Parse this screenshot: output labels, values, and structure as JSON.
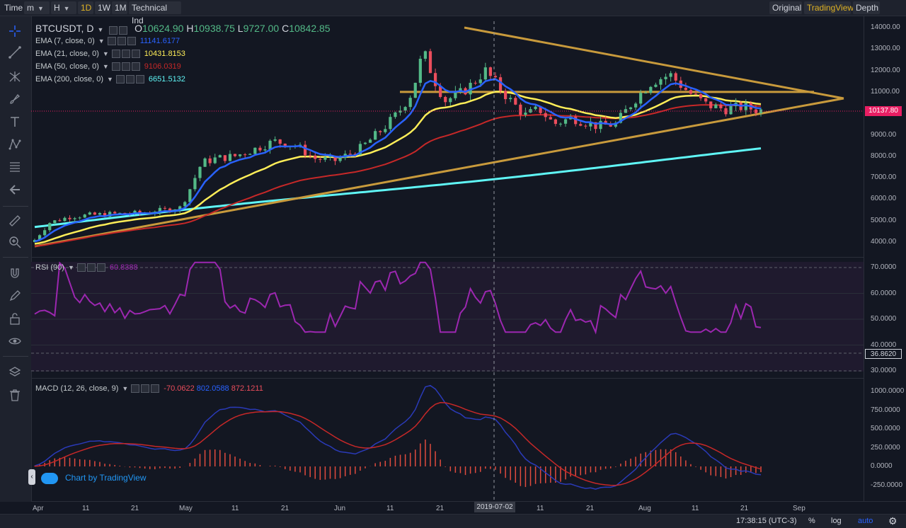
{
  "toolbar": {
    "time_label": "Time",
    "minute_label": "m",
    "hour_label": "H",
    "interval_1d": "1D",
    "interval_1w": "1W",
    "interval_1m": "1M",
    "indicators_label": "Technical Ind",
    "view_original": "Original",
    "view_tradingview": "TradingView",
    "view_depth": "Depth"
  },
  "colors": {
    "background": "#131722",
    "bull": "#53b987",
    "bear": "#eb4d5c",
    "ema7": "#2962ff",
    "ema21": "#ffee58",
    "ema50": "#c62828",
    "ema200": "#5ff5f5",
    "trendline": "#c89a3c",
    "rsi": "#9c27b0",
    "price_tag": "#e91e63"
  },
  "legend": {
    "symbol": "BTCUSDT, D",
    "o_label": "O",
    "o_value": "10624.90",
    "h_label": "H",
    "h_value": "10938.75",
    "l_label": "L",
    "l_value": "9727.00",
    "c_label": "C",
    "c_value": "10842.85",
    "ema7_label": "EMA (7, close, 0)",
    "ema7_value": "11141.6177",
    "ema21_label": "EMA (21, close, 0)",
    "ema21_value": "10431.8153",
    "ema50_label": "EMA (50, close, 0)",
    "ema50_value": "9106.0319",
    "ema200_label": "EMA (200, close, 0)",
    "ema200_value": "6651.5132",
    "rsi_label": "RSI (90)",
    "rsi_value": "60.8388",
    "macd_label": "MACD (12, 26, close, 9)",
    "macd_value1": "-70.0622",
    "macd_value2": "802.0588",
    "macd_value3": "872.1211"
  },
  "price_axis": [
    "14000.00",
    "13000.00",
    "12000.00",
    "11000.00",
    "10000.00",
    "9000.00",
    "8000.00",
    "7000.00",
    "6000.00",
    "5000.00",
    "4000.00"
  ],
  "current_price": "10137.80",
  "rsi_axis": [
    "70.0000",
    "60.0000",
    "50.0000",
    "40.0000",
    "30.0000"
  ],
  "rsi_current": "36.8620",
  "macd_axis": [
    "1000.0000",
    "750.0000",
    "500.0000",
    "250.0000",
    "0.0000",
    "-250.0000"
  ],
  "time_axis": [
    "Apr",
    "11",
    "21",
    "May",
    "11",
    "21",
    "Jun",
    "11",
    "21",
    "11",
    "21",
    "Aug",
    "11",
    "21",
    "Sep"
  ],
  "crosshair_date": "2019-07-02",
  "watermark": "Chart by TradingView",
  "bottom": {
    "clock": "17:38:15 (UTC-3)",
    "percent": "%",
    "log": "log",
    "auto": "auto"
  },
  "chart_data": {
    "type": "candlestick",
    "symbol": "BTCUSDT",
    "interval": "D",
    "price_range": [
      3700,
      14200
    ],
    "key_points": [
      {
        "date": "Apr 1",
        "close": 4100
      },
      {
        "date": "Apr 11",
        "close": 5100
      },
      {
        "date": "Apr 21",
        "close": 5300
      },
      {
        "date": "May 1",
        "close": 5350
      },
      {
        "date": "May 11",
        "close": 7000
      },
      {
        "date": "May 21",
        "close": 7900
      },
      {
        "date": "Jun 1",
        "close": 8600
      },
      {
        "date": "Jun 11",
        "close": 7800
      },
      {
        "date": "Jun 21",
        "close": 9800
      },
      {
        "date": "Jun 26",
        "close": 13000
      },
      {
        "date": "Jul 2",
        "close": 10500
      },
      {
        "date": "Jul 11",
        "close": 12000
      },
      {
        "date": "Jul 21",
        "close": 10000
      },
      {
        "date": "Aug 1",
        "close": 9500
      },
      {
        "date": "Aug 11",
        "close": 11500
      },
      {
        "date": "Aug 21",
        "close": 10200
      },
      {
        "date": "Aug 24",
        "close": 10137.8
      }
    ],
    "rsi_range": [
      28,
      72
    ],
    "macd_range": [
      -330,
      1050
    ]
  }
}
